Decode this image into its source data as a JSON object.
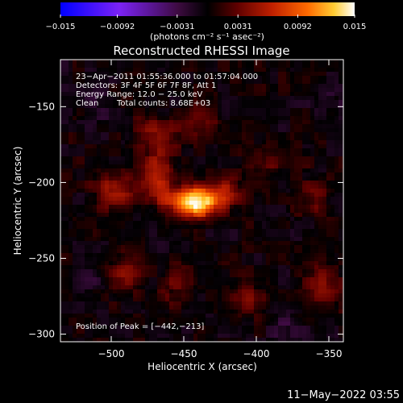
{
  "chart_data": {
    "type": "heatmap",
    "title": "Reconstructed RHESSI Image",
    "xlabel": "Heliocentric X (arcsec)",
    "ylabel": "Heliocentric Y (arcsec)",
    "xlim": [
      -535,
      -340
    ],
    "ylim": [
      -305,
      -119
    ],
    "x_ticks": [
      -500,
      -450,
      -400,
      -350
    ],
    "y_ticks": [
      -150,
      -200,
      -250,
      -300
    ],
    "tick_labels_x": [
      "−500",
      "−450",
      "−400",
      "−350"
    ],
    "tick_labels_y": [
      "−150",
      "−200",
      "−250",
      "−300"
    ],
    "colorbar": {
      "unit_label": "(photons cm⁻² s⁻¹ asec⁻²)",
      "range": [
        -0.015,
        0.015
      ],
      "ticks": [
        -0.015,
        -0.0092,
        -0.0031,
        0.0031,
        0.0092,
        0.015
      ],
      "tick_labels": [
        "−0.015",
        "−0.0092",
        "−0.0031",
        "0.0031",
        "0.0092",
        "0.015"
      ]
    },
    "annotations": [
      "23−Apr−2011 01:55:36.000 to 01:57:04.000",
      "Detectors: 3F 4F 5F 6F 7F 8F, Att 1",
      "Energy Range: 12.0 − 25.0 keV",
      "Clean",
      "Total counts: 8.68E+03",
      "Position of Peak = [−442,−213]"
    ],
    "peak": {
      "x": -442,
      "y": -213,
      "value": 0.015
    },
    "sources": [
      {
        "x": -442,
        "y": -213,
        "sx": 12,
        "sy": 7,
        "amp": 0.0155
      },
      {
        "x": -468,
        "y": -197,
        "sx": 8,
        "sy": 10,
        "amp": 0.0062
      },
      {
        "x": -420,
        "y": -206,
        "sx": 7,
        "sy": 6,
        "amp": 0.0042
      },
      {
        "x": -497,
        "y": -205,
        "sx": 9,
        "sy": 9,
        "amp": 0.0052
      },
      {
        "x": -470,
        "y": -170,
        "sx": 10,
        "sy": 9,
        "amp": 0.004
      },
      {
        "x": -440,
        "y": -159,
        "sx": 9,
        "sy": 8,
        "amp": 0.003
      },
      {
        "x": -490,
        "y": -262,
        "sx": 9,
        "sy": 10,
        "amp": 0.0034
      },
      {
        "x": -455,
        "y": -268,
        "sx": 8,
        "sy": 10,
        "amp": 0.0026
      },
      {
        "x": -405,
        "y": -278,
        "sx": 10,
        "sy": 8,
        "amp": 0.003
      },
      {
        "x": -355,
        "y": -268,
        "sx": 10,
        "sy": 10,
        "amp": 0.0034
      },
      {
        "x": -395,
        "y": -188,
        "sx": 9,
        "sy": 7,
        "amp": 0.002
      },
      {
        "x": -360,
        "y": -209,
        "sx": 9,
        "sy": 10,
        "amp": 0.0026
      },
      {
        "x": -515,
        "y": -262,
        "sx": 8,
        "sy": 8,
        "amp": -0.0024
      },
      {
        "x": -380,
        "y": -298,
        "sx": 10,
        "sy": 8,
        "amp": -0.0022
      },
      {
        "x": -510,
        "y": -145,
        "sx": 9,
        "sy": 9,
        "amp": -0.0018
      },
      {
        "x": -350,
        "y": -150,
        "sx": 9,
        "sy": 10,
        "amp": -0.0016
      }
    ]
  },
  "footer": {
    "timestamp": "11−May−2022 03:55"
  }
}
